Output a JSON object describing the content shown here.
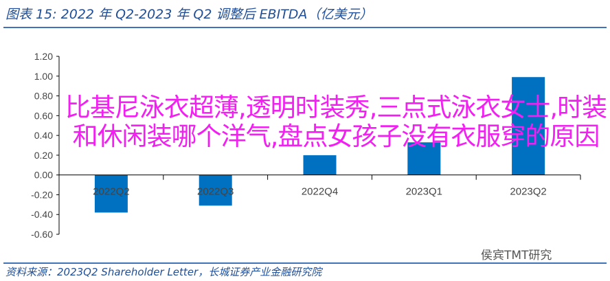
{
  "title": "图表 15:  2022 年 Q2-2023 年 Q2 调整后 EBITDA（亿美元）",
  "overlay_text": "比基尼泳衣超薄,透明时装秀,三点式泳衣女士,时装和休闲装哪个洋气,盘点女孩子没有衣服穿的原因",
  "watermark": "侯宾TMT研究",
  "source": "资料来源：2023Q2 Shareholder Letter，长城证券产业金融研究院",
  "chart_data": {
    "type": "bar",
    "title": "",
    "categories": [
      "2022Q2",
      "2022Q3",
      "2022Q4",
      "2023Q1",
      "2023Q2"
    ],
    "values": [
      -0.38,
      -0.31,
      0.2,
      0.33,
      0.99
    ],
    "ylim": [
      -0.6,
      1.2
    ],
    "yticks": [
      "-0.60",
      "-0.40",
      "-0.20",
      "0.00",
      "0.20",
      "0.40",
      "0.60",
      "0.80",
      "1.00",
      "1.20"
    ],
    "bar_color": "#0070c0",
    "grid": false,
    "legend": "none"
  }
}
